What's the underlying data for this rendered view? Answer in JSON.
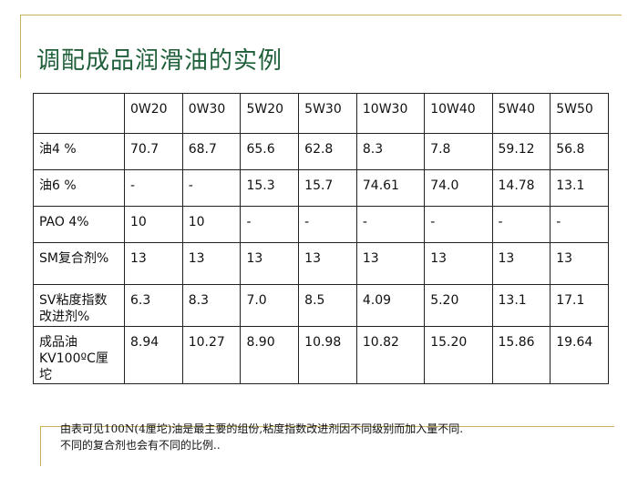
{
  "title": "调配成品润滑油的实例",
  "table": {
    "columns": [
      "",
      "0W20",
      "0W30",
      "5W20",
      "5W30",
      "10W30",
      "10W40",
      "5W40",
      "5W50"
    ],
    "rows": [
      {
        "label": "油4 %",
        "cells": [
          "70.7",
          "68.7",
          "65.6",
          "62.8",
          "8.3",
          "7.8",
          "59.12",
          "56.8"
        ]
      },
      {
        "label": "油6 %",
        "cells": [
          "-",
          "-",
          "15.3",
          "15.7",
          "74.61",
          "74.0",
          "14.78",
          "13.1"
        ]
      },
      {
        "label": "PAO 4%",
        "cells": [
          "10",
          "10",
          "-",
          "-",
          "-",
          "-",
          "-",
          "-"
        ]
      },
      {
        "label": "SM复合剂%",
        "cells": [
          "13",
          "13",
          "13",
          "13",
          "13",
          "13",
          "13",
          "13"
        ]
      },
      {
        "label": "SV粘度指数改进剂%",
        "cells": [
          "6.3",
          "8.3",
          "7.0",
          "8.5",
          "4.09",
          "5.20",
          "13.1",
          "17.1"
        ]
      },
      {
        "label": "成品油KV100ºC厘坨",
        "cells": [
          "8.94",
          "10.27",
          "8.90",
          "10.98",
          "10.82",
          "15.20",
          "15.86",
          "19.64"
        ]
      }
    ]
  },
  "footnote": {
    "line1": "由表可见100N(4厘坨)油是最主要的组份,粘度指数改进剂因不同级别而加入量不同.",
    "line2": "不同的复合剂也会有不同的比例.."
  }
}
